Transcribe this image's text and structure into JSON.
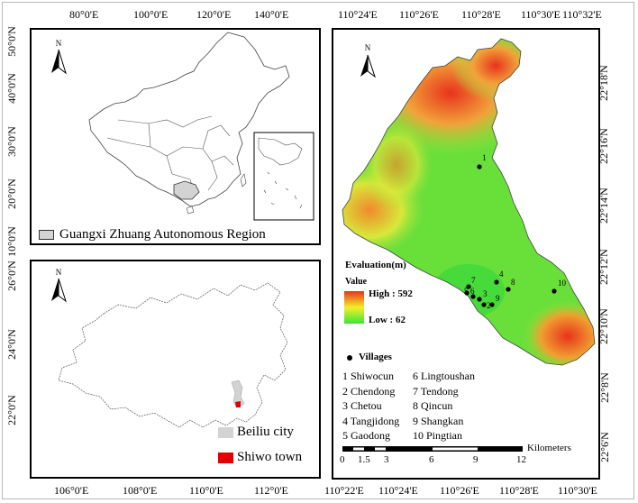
{
  "panel_china": {
    "top_ticks": [
      "80°0'E",
      "100°0'E",
      "120°0'E",
      "140°0'E"
    ],
    "left_ticks": [
      "50°0'N",
      "40°0'N",
      "30°0'N",
      "20°0'N",
      "10°0'N"
    ],
    "north_label": "N",
    "legend_label": "Guangxi Zhuang Autonomous Region"
  },
  "panel_guangxi": {
    "bottom_ticks": [
      "106°0'E",
      "108°0'E",
      "110°0'E",
      "112°0'E"
    ],
    "left_ticks": [
      "26°0'N",
      "24°0'N",
      "22°0'N"
    ],
    "north_label": "N",
    "legend": [
      {
        "label": "Beiliu city",
        "color": "#d3d3d3"
      },
      {
        "label": "Shiwo town",
        "color": "#e00000"
      }
    ]
  },
  "panel_study": {
    "top_ticks": [
      "110°24'E",
      "110°26'E",
      "110°28'E",
      "110°30'E",
      "110°32'E"
    ],
    "bottom_ticks": [
      "110°22'E",
      "110°24'E",
      "110°26'E",
      "110°28'E",
      "110°30'E"
    ],
    "right_ticks": [
      "22°18'N",
      "22°16'N",
      "22°14'N",
      "22°12'N",
      "22°10'N",
      "22°8'N",
      "22°6'N"
    ],
    "north_label": "N",
    "evaluation_title": "Evaluation(m)",
    "value_label": "Value",
    "high_label": "High : 592",
    "low_label": "Low : 62",
    "ramp_colors": {
      "high": "#e8331c",
      "mid": "#f4ee2a",
      "low": "#39e63a"
    },
    "villages_title": "Villages",
    "villages_col1": [
      "1 Shiwocun",
      "2 Chendong",
      "3 Chetou",
      "4 Tangjidong",
      "5 Gaodong"
    ],
    "villages_col2": [
      "6 Lingtoushan",
      "7 Tendong",
      "8 Qincun",
      "9 Shangkan",
      "10 Pingtian"
    ],
    "village_markers": [
      "1",
      "2",
      "3",
      "4",
      "5",
      "6",
      "7",
      "8",
      "9",
      "10"
    ],
    "scale_ticks": [
      "0",
      "1.5",
      "3",
      "6",
      "9",
      "12"
    ],
    "scale_unit": "Kilometers"
  }
}
